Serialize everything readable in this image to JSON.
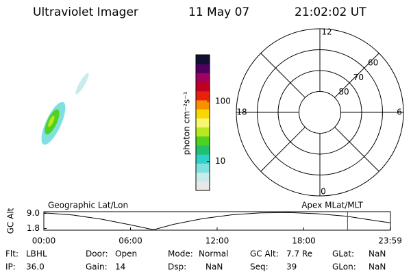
{
  "header": {
    "title": "Ultraviolet Imager",
    "date": "11 May 07",
    "time": "21:02:02 UT"
  },
  "colorbar": {
    "label": "photon cm⁻²s⁻¹",
    "log": true,
    "clim": [
      3.3,
      590
    ],
    "ticks": [
      10,
      100
    ],
    "colors": [
      "#e8e8e8",
      "#c8ecec",
      "#80e0e0",
      "#30d0c8",
      "#20c070",
      "#50d020",
      "#b8e820",
      "#f8f870",
      "#f8d800",
      "#f89000",
      "#e82010",
      "#c00020",
      "#a00060",
      "#500060",
      "#101030"
    ]
  },
  "polar": {
    "rlim": [
      90,
      50
    ],
    "rticks": [
      60,
      70,
      80
    ],
    "mlt_labels": [
      "12",
      "6",
      "0",
      "18"
    ]
  },
  "altitude": {
    "ylabel": "GC Alt",
    "left_label": "Geographic Lat/Lon",
    "right_label": "Apex MLat/MLT",
    "xlim": [
      0,
      24
    ],
    "xticks": [
      {
        "value": 0,
        "label": "00:00"
      },
      {
        "value": 6,
        "label": "06:00"
      },
      {
        "value": 12,
        "label": "12:00"
      },
      {
        "value": 18,
        "label": "18:00"
      },
      {
        "value": 23.98,
        "label": "23:59"
      }
    ],
    "ylim": [
      1.0,
      9.8
    ],
    "yticks": [
      {
        "value": 9.0,
        "label": "9.0"
      },
      {
        "value": 1.8,
        "label": "1.8"
      }
    ],
    "x": [
      0,
      2,
      4,
      6,
      7.6,
      9,
      11,
      13,
      15,
      17,
      19,
      21,
      23,
      24
    ],
    "values": [
      9.2,
      8.2,
      6.2,
      3.5,
      1.2,
      3.8,
      6.5,
      8.3,
      9.2,
      9.4,
      8.8,
      7.6,
      5.5,
      4.5
    ],
    "marker": 21.03,
    "marker_color": "#e00000"
  },
  "info": [
    [
      {
        "label": "Flt:",
        "value": "LBHL"
      },
      {
        "label": "Door:",
        "value": "Open"
      },
      {
        "label": "Mode:",
        "value": "Normal"
      },
      {
        "label": "GC Alt:",
        "value": "7.7 Re"
      },
      {
        "label": "GLat:",
        "value": "NaN"
      }
    ],
    [
      {
        "label": "IP:",
        "value": "36.0"
      },
      {
        "label": "Gain:",
        "value": "14"
      },
      {
        "label": "Dsp:",
        "value": "NaN"
      },
      {
        "label": "Seq:",
        "value": "39"
      },
      {
        "label": "GLon:",
        "value": "NaN"
      }
    ]
  ]
}
